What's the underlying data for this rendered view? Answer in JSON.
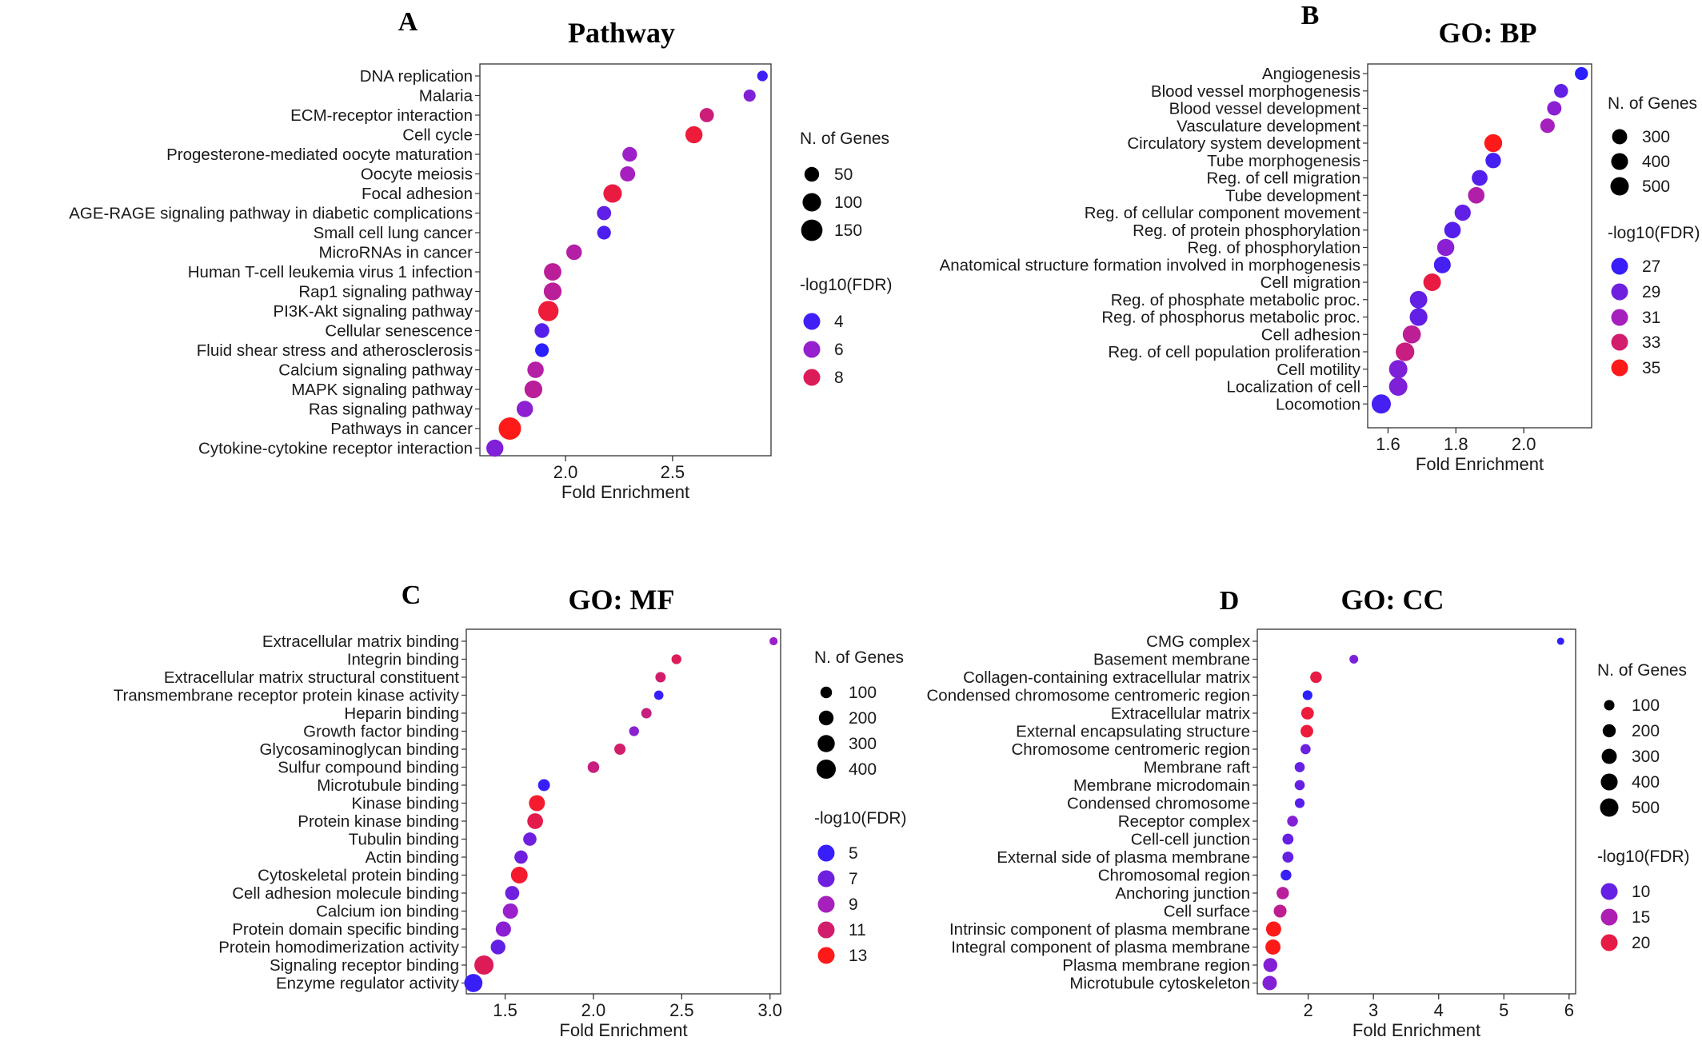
{
  "figure": {
    "panels": [
      {
        "letter": "A",
        "title": "Pathway"
      },
      {
        "letter": "B",
        "title": "GO: BP"
      },
      {
        "letter": "C",
        "title": "GO: MF"
      },
      {
        "letter": "D",
        "title": "GO: CC"
      }
    ]
  },
  "colors": {
    "low": "#2a1fff",
    "mid": "#a020c8",
    "high": "#ff1a1a"
  },
  "chart_data": [
    {
      "type": "scatter",
      "title": "Pathway",
      "xlabel": "Fold Enrichment",
      "ylabel": "",
      "xlim": [
        1.6,
        2.96
      ],
      "xticks": [
        "2.0",
        "2.5"
      ],
      "size_legend": {
        "title": "N. of Genes",
        "values": [
          "50",
          "100",
          "150"
        ]
      },
      "color_legend": {
        "title": "-log10(FDR)",
        "values": [
          "4",
          "6",
          "8"
        ]
      },
      "grid": false,
      "legend_position": "right",
      "categories": [
        "DNA replication",
        "Malaria",
        "ECM-receptor interaction",
        "Cell cycle",
        "Progesterone-mediated oocyte maturation",
        "Oocyte meiosis",
        "Focal adhesion",
        "AGE-RAGE signaling pathway in diabetic complications",
        "Small cell lung cancer",
        "MicroRNAs in cancer",
        "Human T-cell leukemia virus 1 infection",
        "Rap1 signaling pathway",
        "PI3K-Akt signaling pathway",
        "Cellular senescence",
        "Fluid shear stress and atherosclerosis",
        "Calcium signaling pathway",
        "MAPK signaling pathway",
        "Ras signaling pathway",
        "Pathways in cancer",
        "Cytokine-cytokine receptor interaction"
      ],
      "x": [
        2.92,
        2.86,
        2.66,
        2.6,
        2.3,
        2.29,
        2.22,
        2.18,
        2.18,
        2.04,
        1.94,
        1.94,
        1.92,
        1.89,
        1.89,
        1.86,
        1.85,
        1.81,
        1.74,
        1.67
      ],
      "genes": [
        15,
        25,
        45,
        80,
        50,
        55,
        100,
        45,
        40,
        60,
        85,
        90,
        130,
        50,
        40,
        70,
        90,
        70,
        170,
        80
      ],
      "fdr": [
        4.0,
        5.5,
        7.5,
        8.5,
        6.2,
        6.4,
        8.4,
        4.8,
        4.3,
        6.8,
        7.0,
        7.0,
        8.5,
        4.5,
        3.5,
        6.8,
        7.0,
        5.8,
        9.0,
        5.5
      ]
    },
    {
      "type": "scatter",
      "title": "GO: BP",
      "xlabel": "Fold Enrichment",
      "ylabel": "",
      "xlim": [
        1.54,
        2.2
      ],
      "xticks": [
        "1.6",
        "1.8",
        "2.0"
      ],
      "size_legend": {
        "title": "N. of Genes",
        "values": [
          "300",
          "400",
          "500"
        ]
      },
      "color_legend": {
        "title": "-log10(FDR)",
        "values": [
          "27",
          "29",
          "31",
          "33",
          "35"
        ]
      },
      "grid": false,
      "legend_position": "right",
      "categories": [
        "Angiogenesis",
        "Blood vessel morphogenesis",
        "Blood vessel development",
        "Vasculature development",
        "Circulatory system development",
        "Tube morphogenesis",
        "Reg. of cell migration",
        "Tube development",
        "Reg. of cellular component movement",
        "Reg. of protein phosphorylation",
        "Reg. of phosphorylation",
        "Anatomical structure formation involved in morphogenesis",
        "Cell migration",
        "Reg. of phosphate metabolic proc.",
        "Reg. of phosphorus metabolic proc.",
        "Cell adhesion",
        "Reg. of cell population proliferation",
        "Cell motility",
        "Localization of cell",
        "Locomotion"
      ],
      "x": [
        2.17,
        2.11,
        2.09,
        2.07,
        1.91,
        1.91,
        1.87,
        1.86,
        1.82,
        1.79,
        1.77,
        1.76,
        1.73,
        1.69,
        1.69,
        1.67,
        1.65,
        1.63,
        1.63,
        1.58
      ],
      "genes": [
        200,
        240,
        260,
        270,
        470,
        320,
        340,
        380,
        360,
        380,
        420,
        400,
        450,
        440,
        460,
        480,
        520,
        500,
        500,
        560
      ],
      "fdr": [
        26.5,
        28.5,
        30,
        31,
        35,
        27.5,
        28,
        31.5,
        28.5,
        28,
        30,
        27.5,
        34,
        28.5,
        28.5,
        32,
        32.5,
        29.5,
        29.5,
        27.5
      ]
    },
    {
      "type": "scatter",
      "title": "GO: MF",
      "xlabel": "Fold Enrichment",
      "ylabel": "",
      "xlim": [
        1.28,
        3.06
      ],
      "xticks": [
        "1.5",
        "2.0",
        "2.5",
        "3.0"
      ],
      "size_legend": {
        "title": "N. of Genes",
        "values": [
          "100",
          "200",
          "300",
          "400"
        ]
      },
      "color_legend": {
        "title": "-log10(FDR)",
        "values": [
          "5",
          "7",
          "9",
          "11",
          "13"
        ]
      },
      "grid": false,
      "legend_position": "right",
      "categories": [
        "Extracellular matrix binding",
        "Integrin binding",
        "Extracellular matrix structural constituent",
        "Transmembrane receptor protein kinase activity",
        "Heparin binding",
        "Growth factor binding",
        "Glycosaminoglycan binding",
        "Sulfur compound binding",
        "Microtubule binding",
        "Kinase binding",
        "Protein kinase binding",
        "Tubulin binding",
        "Actin binding",
        "Cytoskeletal protein binding",
        "Cell adhesion molecule binding",
        "Calcium ion binding",
        "Protein domain specific binding",
        "Protein homodimerization activity",
        "Signaling receptor binding",
        "Enzyme regulator activity"
      ],
      "x": [
        3.02,
        2.47,
        2.38,
        2.37,
        2.3,
        2.23,
        2.15,
        2.0,
        1.72,
        1.68,
        1.67,
        1.64,
        1.59,
        1.58,
        1.54,
        1.53,
        1.49,
        1.46,
        1.38,
        1.32
      ],
      "genes": [
        30,
        60,
        70,
        50,
        70,
        60,
        90,
        100,
        110,
        250,
        240,
        150,
        150,
        280,
        180,
        220,
        220,
        200,
        400,
        350
      ],
      "fdr": [
        8.5,
        11.5,
        11.0,
        5.0,
        10.5,
        8.0,
        11.0,
        10.5,
        5.0,
        12.5,
        11.8,
        7.0,
        7.0,
        12.5,
        7.0,
        8.5,
        8.0,
        6.5,
        11.5,
        5.0
      ]
    },
    {
      "type": "scatter",
      "title": "GO: CC",
      "xlabel": "Fold Enrichment",
      "ylabel": "",
      "xlim": [
        1.22,
        6.1
      ],
      "xticks": [
        "2",
        "3",
        "4",
        "5",
        "6"
      ],
      "size_legend": {
        "title": "N. of Genes",
        "values": [
          "100",
          "200",
          "300",
          "400",
          "500"
        ]
      },
      "color_legend": {
        "title": "-log10(FDR)",
        "values": [
          "10",
          "15",
          "20"
        ]
      },
      "grid": false,
      "legend_position": "right",
      "categories": [
        "CMG complex",
        "Basement membrane",
        "Collagen-containing extracellular matrix",
        "Condensed chromosome centromeric region",
        "Extracellular matrix",
        "External encapsulating structure",
        "Chromosome centromeric region",
        "Membrane raft",
        "Membrane microdomain",
        "Condensed chromosome",
        "Receptor complex",
        "Cell-cell junction",
        "External side of plasma membrane",
        "Chromosomal region",
        "Anchoring junction",
        "Cell surface",
        "Intrinsic component of plasma membrane",
        "Integral component of plasma membrane",
        "Plasma membrane region",
        "Microtubule cytoskeleton"
      ],
      "x": [
        5.87,
        2.7,
        2.12,
        1.99,
        1.99,
        1.98,
        1.96,
        1.87,
        1.87,
        1.87,
        1.76,
        1.69,
        1.69,
        1.66,
        1.61,
        1.57,
        1.47,
        1.46,
        1.42,
        1.41
      ],
      "genes": [
        25,
        55,
        140,
        80,
        180,
        180,
        90,
        90,
        90,
        80,
        110,
        120,
        120,
        110,
        170,
        190,
        300,
        300,
        240,
        260
      ],
      "fdr": [
        6.5,
        11.5,
        20,
        6.0,
        20.5,
        20.5,
        10.5,
        10.0,
        10.0,
        9.0,
        12.0,
        10.0,
        10.0,
        7.0,
        16.0,
        16.5,
        22.0,
        22.0,
        12.0,
        12.0
      ]
    }
  ]
}
